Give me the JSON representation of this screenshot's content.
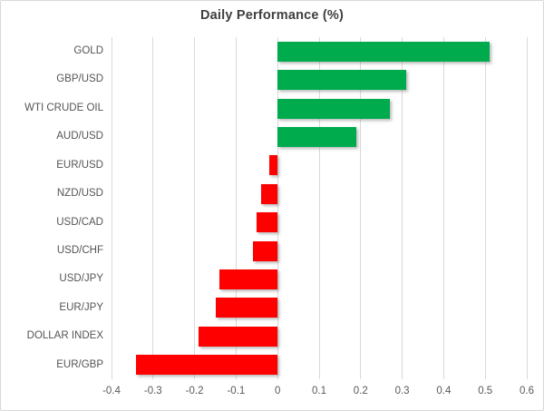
{
  "chart_data": {
    "type": "bar",
    "orientation": "horizontal",
    "title": "Daily Performance (%)",
    "xlabel": "",
    "ylabel": "",
    "categories": [
      "GOLD",
      "GBP/USD",
      "WTI CRUDE OIL",
      "AUD/USD",
      "EUR/USD",
      "NZD/USD",
      "USD/CAD",
      "USD/CHF",
      "USD/JPY",
      "EUR/JPY",
      "DOLLAR INDEX",
      "EUR/GBP"
    ],
    "values": [
      0.51,
      0.31,
      0.27,
      0.19,
      -0.02,
      -0.04,
      -0.05,
      -0.06,
      -0.14,
      -0.15,
      -0.19,
      -0.34
    ],
    "xlim": [
      -0.4,
      0.6
    ],
    "xticks": [
      -0.4,
      -0.3,
      -0.2,
      -0.1,
      0,
      0.1,
      0.2,
      0.3,
      0.4,
      0.5,
      0.6
    ],
    "xtick_labels": [
      "-0.4",
      "-0.3",
      "-0.2",
      "-0.1",
      "0",
      "0.1",
      "0.2",
      "0.3",
      "0.4",
      "0.5",
      "0.6"
    ],
    "grid": true,
    "legend": false,
    "colors": {
      "positive": "#00ab4e",
      "negative": "#ff0000",
      "gridline": "#d9d9d9",
      "title_text": "#3f3f3f",
      "label_text": "#545454",
      "tick_text": "#595959",
      "border": "#d9d9d9",
      "background": "#ffffff"
    }
  }
}
